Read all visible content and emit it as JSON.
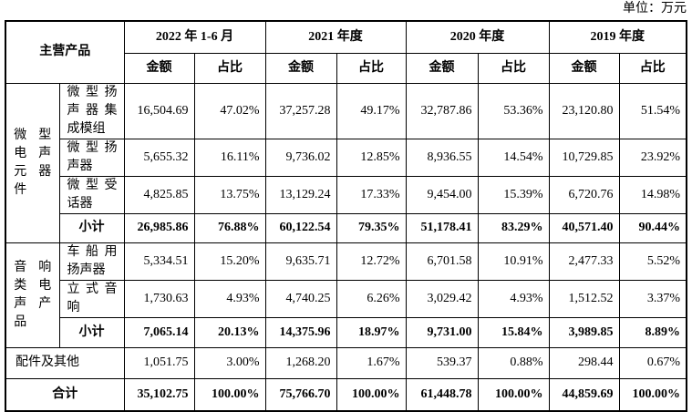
{
  "unit_label": "单位：万元",
  "table": {
    "header": {
      "product_label": "主营产品",
      "periods": [
        "2022 年 1-6 月",
        "2021 年度",
        "2020 年度",
        "2019 年度"
      ],
      "amount_label": "金额",
      "share_label": "占比"
    },
    "groups": [
      {
        "name": "微型电声元器件",
        "rows": [
          {
            "product": "微型扬声器集成模组",
            "values": [
              "16,504.69",
              "47.02%",
              "37,257.28",
              "49.17%",
              "32,787.86",
              "53.36%",
              "23,120.80",
              "51.54%"
            ]
          },
          {
            "product": "微型扬声器",
            "values": [
              "5,655.32",
              "16.11%",
              "9,736.02",
              "12.85%",
              "8,936.55",
              "14.54%",
              "10,729.85",
              "23.92%"
            ]
          },
          {
            "product": "微型受话器",
            "values": [
              "4,825.85",
              "13.75%",
              "13,129.24",
              "17.33%",
              "9,454.00",
              "15.39%",
              "6,720.76",
              "14.98%"
            ]
          }
        ],
        "subtotal": {
          "label": "小计",
          "values": [
            "26,985.86",
            "76.88%",
            "60,122.54",
            "79.35%",
            "51,178.41",
            "83.29%",
            "40,571.40",
            "90.44%"
          ]
        }
      },
      {
        "name": "音响类电声产品",
        "rows": [
          {
            "product": "车船用扬声器",
            "values": [
              "5,334.51",
              "15.20%",
              "9,635.71",
              "12.72%",
              "6,701.58",
              "10.91%",
              "2,477.33",
              "5.52%"
            ]
          },
          {
            "product": "立式音响",
            "values": [
              "1,730.63",
              "4.93%",
              "4,740.25",
              "6.26%",
              "3,029.42",
              "4.93%",
              "1,512.52",
              "3.37%"
            ]
          }
        ],
        "subtotal": {
          "label": "小计",
          "values": [
            "7,065.14",
            "20.13%",
            "14,375.96",
            "18.97%",
            "9,731.00",
            "15.84%",
            "3,989.85",
            "8.89%"
          ]
        }
      }
    ],
    "other": {
      "label": "配件及其他",
      "values": [
        "1,051.75",
        "3.00%",
        "1,268.20",
        "1.67%",
        "539.37",
        "0.88%",
        "298.44",
        "0.67%"
      ]
    },
    "total": {
      "label": "合计",
      "values": [
        "35,102.75",
        "100.00%",
        "75,766.70",
        "100.00%",
        "61,448.78",
        "100.00%",
        "44,859.69",
        "100.00%"
      ]
    }
  }
}
